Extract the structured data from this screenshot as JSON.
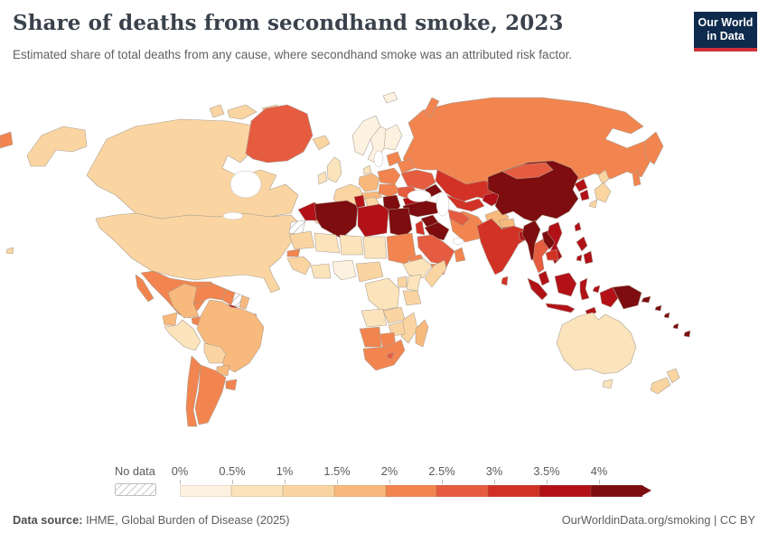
{
  "header": {
    "title": "Share of deaths from secondhand smoke, 2023",
    "subtitle": "Estimated share of total deaths from any cause, where secondhand smoke was an attributed risk factor.",
    "logo": {
      "line1": "Our World",
      "line2": "in Data",
      "bg_color": "#0e2a4d",
      "accent_color": "#cf3139"
    }
  },
  "legend": {
    "no_data_label": "No data",
    "tick_labels": [
      "0%",
      "0.5%",
      "1%",
      "1.5%",
      "2%",
      "2.5%",
      "3%",
      "3.5%",
      "4%"
    ],
    "colors": [
      "#fdf2e0",
      "#fbe3bb",
      "#fad5a2",
      "#f8b97c",
      "#f2854f",
      "#e55c40",
      "#d23226",
      "#b11117",
      "#7d0d0e"
    ],
    "ranges": [
      "0-0.5%",
      "0.5-1%",
      "1-1.5%",
      "1.5-2%",
      "2-2.5%",
      "2.5-3%",
      "3-3.5%",
      "3.5-4%",
      "4%+"
    ]
  },
  "footer": {
    "source_label": "Data source:",
    "source_text": " IHME, Global Burden of Disease (2025)",
    "credit": "OurWorldinData.org/smoking | CC BY"
  },
  "chart_data": {
    "type": "heatmap",
    "variant": "world-choropleth",
    "title": "Share of deaths from secondhand smoke, 2023",
    "year": 2023,
    "unit": "% of total deaths",
    "legend_position": "bottom",
    "bins": [
      "0-0.5%",
      "0.5-1%",
      "1-1.5%",
      "1.5-2%",
      "2-2.5%",
      "2.5-3%",
      "3-3.5%",
      "3.5-4%",
      "4%+"
    ],
    "bin_colors": [
      "#fdf2e0",
      "#fbe3bb",
      "#fad5a2",
      "#f8b97c",
      "#f2854f",
      "#e55c40",
      "#d23226",
      "#b11117",
      "#7d0d0e"
    ],
    "no_data_bin": -1,
    "regions": [
      {
        "id": "canada",
        "name": "Canada",
        "bin": 2
      },
      {
        "id": "usa",
        "name": "United States",
        "bin": 2
      },
      {
        "id": "greenland",
        "name": "Greenland",
        "bin": 5
      },
      {
        "id": "mexico",
        "name": "Mexico",
        "bin": 4
      },
      {
        "id": "central-america",
        "name": "Central America",
        "bin": 4
      },
      {
        "id": "cuba",
        "name": "Cuba",
        "bin": 7
      },
      {
        "id": "hispaniola",
        "name": "Haiti & Dominican Republic",
        "bin": 5
      },
      {
        "id": "colombia",
        "name": "Colombia",
        "bin": 3
      },
      {
        "id": "venezuela",
        "name": "Venezuela",
        "bin": 4
      },
      {
        "id": "guyana",
        "name": "Guyana",
        "bin": 4
      },
      {
        "id": "suriname",
        "name": "Suriname",
        "bin": -1
      },
      {
        "id": "french-guiana",
        "name": "French Guiana",
        "bin": 3
      },
      {
        "id": "ecuador",
        "name": "Ecuador",
        "bin": 3
      },
      {
        "id": "peru",
        "name": "Peru",
        "bin": 1
      },
      {
        "id": "brazil",
        "name": "Brazil",
        "bin": 3
      },
      {
        "id": "bolivia",
        "name": "Bolivia",
        "bin": 2
      },
      {
        "id": "paraguay",
        "name": "Paraguay",
        "bin": 3
      },
      {
        "id": "uruguay",
        "name": "Uruguay",
        "bin": 4
      },
      {
        "id": "argentina",
        "name": "Argentina",
        "bin": 4
      },
      {
        "id": "chile",
        "name": "Chile",
        "bin": 4
      },
      {
        "id": "iceland",
        "name": "Iceland",
        "bin": 2
      },
      {
        "id": "uk",
        "name": "United Kingdom",
        "bin": 1
      },
      {
        "id": "ireland",
        "name": "Ireland",
        "bin": 1
      },
      {
        "id": "norway",
        "name": "Norway",
        "bin": 0
      },
      {
        "id": "sweden",
        "name": "Sweden",
        "bin": 0
      },
      {
        "id": "finland",
        "name": "Finland",
        "bin": 0
      },
      {
        "id": "denmark",
        "name": "Denmark",
        "bin": 1
      },
      {
        "id": "germany",
        "name": "Germany",
        "bin": 3
      },
      {
        "id": "france",
        "name": "France",
        "bin": 2
      },
      {
        "id": "iberia",
        "name": "Spain & Portugal",
        "bin": 2
      },
      {
        "id": "italy",
        "name": "Italy",
        "bin": 2
      },
      {
        "id": "switzerland-austria",
        "name": "Switzerland & Austria",
        "bin": 3
      },
      {
        "id": "poland",
        "name": "Poland",
        "bin": 4
      },
      {
        "id": "czechia-hungary",
        "name": "Czechia, Slovakia & Hungary",
        "bin": 4
      },
      {
        "id": "baltics",
        "name": "Baltic states",
        "bin": 4
      },
      {
        "id": "belarus",
        "name": "Belarus",
        "bin": 4
      },
      {
        "id": "ukraine",
        "name": "Ukraine",
        "bin": 5
      },
      {
        "id": "romania",
        "name": "Romania",
        "bin": 5
      },
      {
        "id": "bulgaria",
        "name": "Bulgaria",
        "bin": 7
      },
      {
        "id": "balkans",
        "name": "Serbia & Western Balkans",
        "bin": 8
      },
      {
        "id": "greece",
        "name": "Greece",
        "bin": 5
      },
      {
        "id": "russia",
        "name": "Russia",
        "bin": 4
      },
      {
        "id": "kazakhstan",
        "name": "Kazakhstan",
        "bin": 6
      },
      {
        "id": "uzbekistan",
        "name": "Uzbekistan",
        "bin": 6
      },
      {
        "id": "turkmenistan",
        "name": "Turkmenistan",
        "bin": 5
      },
      {
        "id": "kyrgyzstan-tajikistan",
        "name": "Kyrgyzstan & Tajikistan",
        "bin": 7
      },
      {
        "id": "caucasus",
        "name": "Georgia, Armenia & Azerbaijan",
        "bin": 8
      },
      {
        "id": "turkey",
        "name": "Turkey",
        "bin": 8
      },
      {
        "id": "syria",
        "name": "Syria",
        "bin": 8
      },
      {
        "id": "iraq",
        "name": "Iraq",
        "bin": 8
      },
      {
        "id": "jordan-israel",
        "name": "Israel & Jordan",
        "bin": 6
      },
      {
        "id": "iran",
        "name": "Iran",
        "bin": 4
      },
      {
        "id": "afghanistan",
        "name": "Afghanistan",
        "bin": 3
      },
      {
        "id": "pakistan",
        "name": "Pakistan",
        "bin": 6
      },
      {
        "id": "saudi-arabia",
        "name": "Saudi Arabia",
        "bin": 5
      },
      {
        "id": "yemen",
        "name": "Yemen",
        "bin": 4
      },
      {
        "id": "oman",
        "name": "Oman",
        "bin": 4
      },
      {
        "id": "morocco",
        "name": "Morocco",
        "bin": 7
      },
      {
        "id": "western-sahara",
        "name": "Western Sahara",
        "bin": -1
      },
      {
        "id": "algeria",
        "name": "Algeria",
        "bin": 8
      },
      {
        "id": "tunisia",
        "name": "Tunisia",
        "bin": 7
      },
      {
        "id": "libya",
        "name": "Libya",
        "bin": 7
      },
      {
        "id": "egypt",
        "name": "Egypt",
        "bin": 8
      },
      {
        "id": "mauritania",
        "name": "Mauritania",
        "bin": 2
      },
      {
        "id": "mali",
        "name": "Mali",
        "bin": 1
      },
      {
        "id": "niger",
        "name": "Niger",
        "bin": 1
      },
      {
        "id": "chad",
        "name": "Chad",
        "bin": 1
      },
      {
        "id": "sudan",
        "name": "Sudan",
        "bin": 4
      },
      {
        "id": "senegal",
        "name": "Senegal",
        "bin": 4
      },
      {
        "id": "guinea-region",
        "name": "Guinea region",
        "bin": 2
      },
      {
        "id": "ghana-ivory",
        "name": "Ghana & Cote d'Ivoire",
        "bin": 1
      },
      {
        "id": "nigeria",
        "name": "Nigeria",
        "bin": 0
      },
      {
        "id": "cameroon-car",
        "name": "Cameroon & Central African Rep.",
        "bin": 2
      },
      {
        "id": "eritrea-djibouti",
        "name": "Eritrea & Djibouti",
        "bin": 4
      },
      {
        "id": "ethiopia",
        "name": "Ethiopia",
        "bin": 1
      },
      {
        "id": "somalia",
        "name": "Somalia",
        "bin": 2
      },
      {
        "id": "kenya",
        "name": "Kenya",
        "bin": 1
      },
      {
        "id": "uganda",
        "name": "Uganda",
        "bin": 2
      },
      {
        "id": "drc",
        "name": "Democratic Republic of Congo",
        "bin": 1
      },
      {
        "id": "tanzania",
        "name": "Tanzania",
        "bin": 2
      },
      {
        "id": "angola",
        "name": "Angola",
        "bin": 1
      },
      {
        "id": "zambia",
        "name": "Zambia",
        "bin": 2
      },
      {
        "id": "mozambique",
        "name": "Mozambique",
        "bin": 2
      },
      {
        "id": "zimbabwe",
        "name": "Zimbabwe",
        "bin": 2
      },
      {
        "id": "namibia",
        "name": "Namibia",
        "bin": 4
      },
      {
        "id": "botswana",
        "name": "Botswana",
        "bin": 4
      },
      {
        "id": "south-africa",
        "name": "South Africa",
        "bin": 4
      },
      {
        "id": "lesotho",
        "name": "Lesotho",
        "bin": 5
      },
      {
        "id": "madagascar",
        "name": "Madagascar",
        "bin": 3
      },
      {
        "id": "china",
        "name": "China",
        "bin": 8
      },
      {
        "id": "mongolia",
        "name": "Mongolia",
        "bin": 5
      },
      {
        "id": "north-korea",
        "name": "North Korea",
        "bin": 7
      },
      {
        "id": "south-korea",
        "name": "South Korea",
        "bin": 7
      },
      {
        "id": "japan",
        "name": "Japan",
        "bin": 2
      },
      {
        "id": "taiwan",
        "name": "Taiwan",
        "bin": 7
      },
      {
        "id": "india",
        "name": "India",
        "bin": 6
      },
      {
        "id": "nepal",
        "name": "Nepal",
        "bin": 3
      },
      {
        "id": "bangladesh",
        "name": "Bangladesh",
        "bin": 7
      },
      {
        "id": "sri-lanka",
        "name": "Sri Lanka",
        "bin": 6
      },
      {
        "id": "myanmar",
        "name": "Myanmar",
        "bin": 8
      },
      {
        "id": "thailand",
        "name": "Thailand",
        "bin": 5
      },
      {
        "id": "laos",
        "name": "Laos",
        "bin": 8
      },
      {
        "id": "vietnam",
        "name": "Vietnam",
        "bin": 7
      },
      {
        "id": "cambodia",
        "name": "Cambodia",
        "bin": 6
      },
      {
        "id": "malaysia",
        "name": "Malaysia",
        "bin": 7
      },
      {
        "id": "indonesia",
        "name": "Indonesia",
        "bin": 7
      },
      {
        "id": "philippines",
        "name": "Philippines",
        "bin": 7
      },
      {
        "id": "papua-new-guinea",
        "name": "Papua New Guinea",
        "bin": 8
      },
      {
        "id": "timor-leste",
        "name": "Timor-Leste",
        "bin": 7
      },
      {
        "id": "solomon-islands",
        "name": "Solomon Islands",
        "bin": 8
      },
      {
        "id": "vanuatu-fiji",
        "name": "Vanuatu & Fiji",
        "bin": 8
      },
      {
        "id": "australia",
        "name": "Australia",
        "bin": 1
      },
      {
        "id": "new-zealand",
        "name": "New Zealand",
        "bin": 2
      }
    ]
  }
}
